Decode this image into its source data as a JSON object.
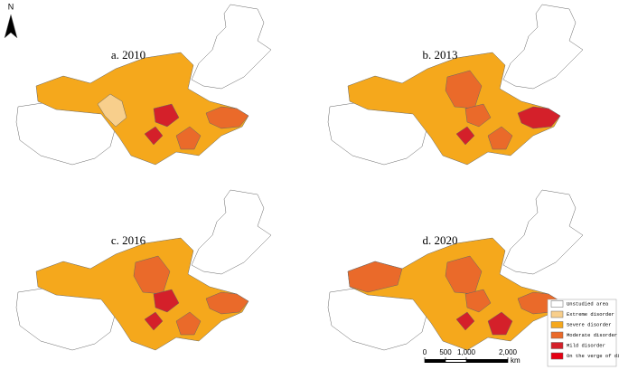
{
  "north_label": "N",
  "panels": [
    {
      "label": "a. 2010"
    },
    {
      "label": "b. 2013"
    },
    {
      "label": "c. 2016"
    },
    {
      "label": "d. 2020"
    }
  ],
  "legend": [
    {
      "label": "Unstudied area",
      "color": "#ffffff"
    },
    {
      "label": "Extreme disorder",
      "color": "#f8cf8c"
    },
    {
      "label": "Severe disorder",
      "color": "#f5a81c"
    },
    {
      "label": "Moderate disorder",
      "color": "#ea6a2a"
    },
    {
      "label": "Mild disorder",
      "color": "#d4202a"
    },
    {
      "label": "On the verge of disorder",
      "color": "#e50012"
    }
  ],
  "scale_bar": {
    "ticks": [
      0,
      500,
      {
        "value": 1000,
        "label": "1,000"
      },
      {
        "value": 2000,
        "label": "2,000"
      }
    ],
    "unit": "km"
  }
}
